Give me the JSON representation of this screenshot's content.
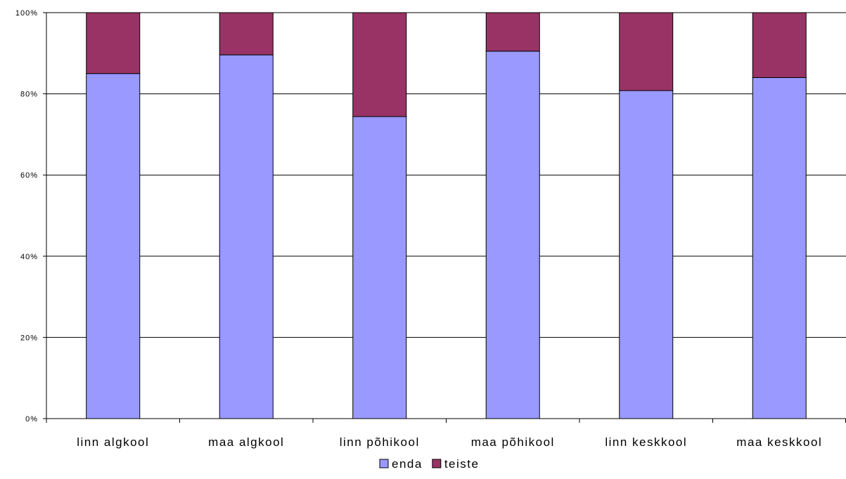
{
  "chart_data": {
    "type": "bar",
    "stacked": true,
    "normalized": true,
    "categories": [
      "linn algkool",
      "maa algkool",
      "linn põhikool",
      "maa põhikool",
      "linn keskkool",
      "maa keskkool"
    ],
    "series": [
      {
        "name": "enda",
        "values": [
          85,
          89.6,
          74.4,
          90.5,
          80.8,
          84
        ],
        "color": "#9999FF"
      },
      {
        "name": "teiste",
        "values": [
          15,
          10.4,
          25.6,
          9.5,
          19.2,
          16
        ],
        "color": "#993366"
      }
    ],
    "yticks": [
      "0%",
      "20%",
      "40%",
      "60%",
      "80%",
      "100%"
    ],
    "ylim": [
      0,
      100
    ],
    "grid": true,
    "legend_position": "bottom"
  }
}
